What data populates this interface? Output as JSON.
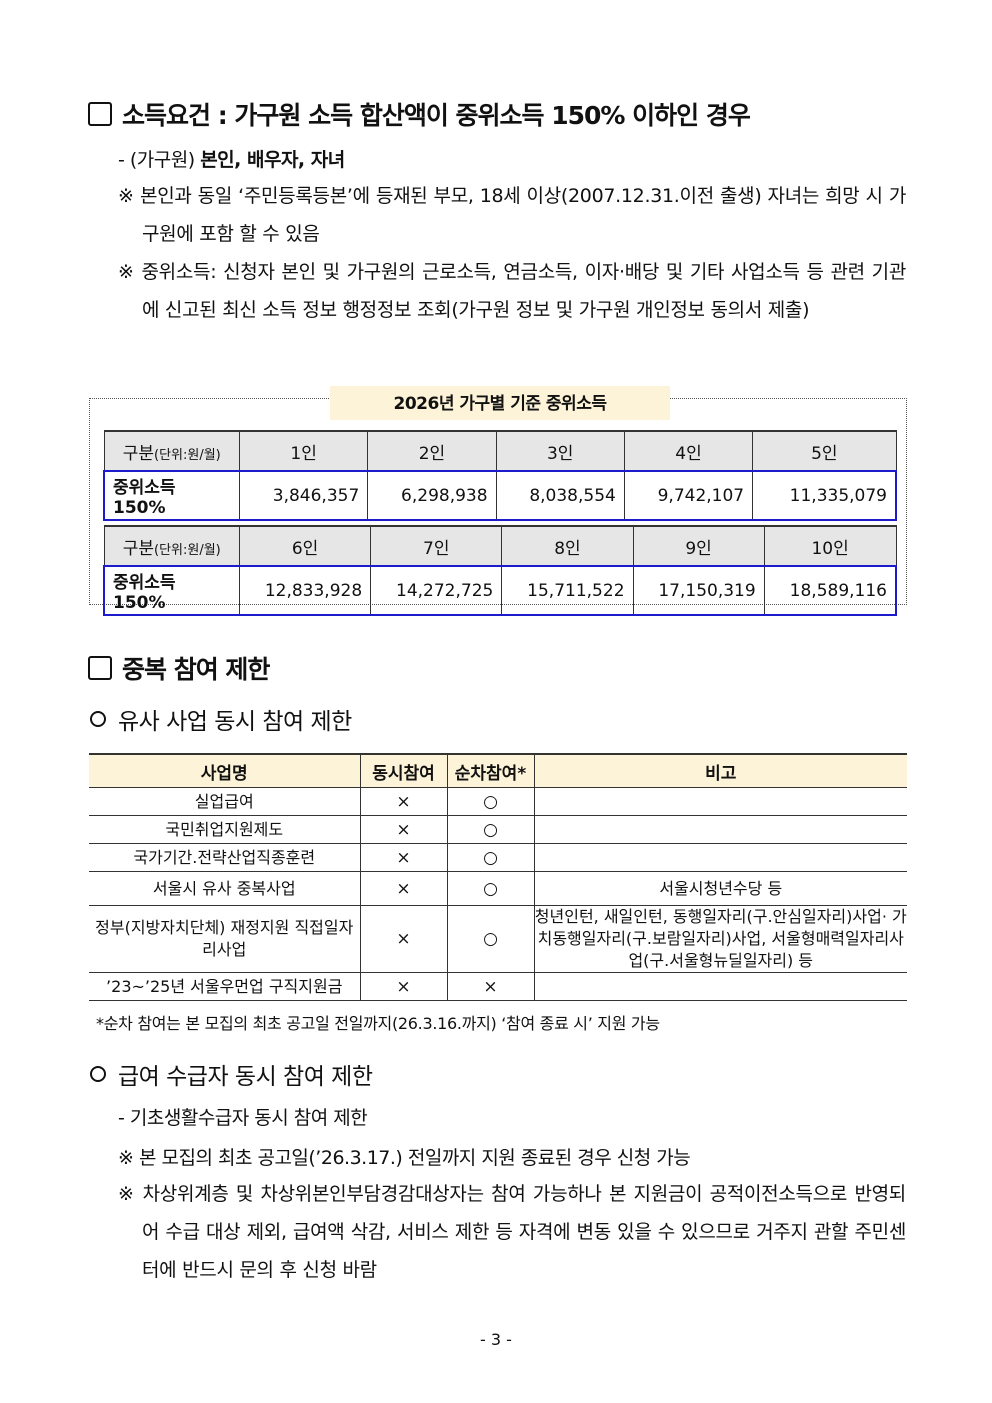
{
  "section1": {
    "title": "소득요건 : 가구원 소득 합산액이 중위소득 150% 이하인 경우",
    "dash": {
      "prefix": "- (가구원) ",
      "bold": "본인, 배우자, 자녀"
    },
    "note1": "※ 본인과 동일 ‘주민등록등본’에 등재된 부모, 18세 이상(2007.12.31.이전 출생) 자녀는 희망 시 가구원에 포함 할 수 있음",
    "note2": "※ 중위소득: 신청자 본인 및 가구원의 근로소득, 연금소득, 이자·배당 및 기타 사업소득 등 관련 기관에 신고된 최신 소득 정보 행정정보 조회(가구원 정보 및 가구원 개인정보 동의서 제출)",
    "table": {
      "title": "2026년 가구별 기준 중위소득",
      "header_label": "구분",
      "header_unit": "(단위:원/월)",
      "row_label": "중위소득 150%",
      "rows": [
        {
          "sizes": [
            "1인",
            "2인",
            "3인",
            "4인",
            "5인"
          ],
          "values": [
            "3,846,357",
            "6,298,938",
            "8,038,554",
            "9,742,107",
            "11,335,079"
          ]
        },
        {
          "sizes": [
            "6인",
            "7인",
            "8인",
            "9인",
            "10인"
          ],
          "values": [
            "12,833,928",
            "14,272,725",
            "15,711,522",
            "17,150,319",
            "18,589,116"
          ]
        }
      ]
    }
  },
  "section2": {
    "title": "중복 참여 제한",
    "sub1": "유사 사업 동시 참여 제한",
    "table": {
      "headers": [
        "사업명",
        "동시참여",
        "순차참여*",
        "비고"
      ],
      "rows": [
        [
          "실업급여",
          "×",
          "○",
          ""
        ],
        [
          "국민취업지원제도",
          "×",
          "○",
          ""
        ],
        [
          "국가기간.전략산업직종훈련",
          "×",
          "○",
          ""
        ],
        [
          "서울시 유사 중복사업",
          "×",
          "○",
          "서울시청년수당 등"
        ],
        [
          "정부(지방자치단체) 재정지원 직접일자리사업",
          "×",
          "○",
          "청년인턴, 새일인턴, 동행일자리(구.안심일자리)사업· 가치동행일자리(구.보람일자리)사업, 서울형매력일자리사업(구.서울형뉴딜일자리) 등"
        ],
        [
          "’23~’25년 서울우먼업 구직지원금",
          "×",
          "×",
          ""
        ]
      ]
    },
    "footnote": "*순차 참여는 본 모집의 최초 공고일 전일까지(26.3.16.까지) ‘참여 종료 시’ 지원 가능",
    "sub2": "급여 수급자 동시 참여 제한",
    "dash": "- 기초생활수급자 동시 참여 제한",
    "note1": "※ 본 모집의 최초 공고일(’26.3.17.) 전일까지 지원 종료된 경우 신청 가능",
    "note2": "※ 차상위계층 및 차상위본인부담경감대상자는 참여 가능하나 본 지원금이 공적이전소득으로 반영되어 수급 대상 제외, 급여액 삭감, 서비스 제한 등 자격에 변동 있을 수 있으므로 거주지 관할 주민센터에 반드시 문의 후 신청 바람"
  },
  "page_number": "- 3 -"
}
